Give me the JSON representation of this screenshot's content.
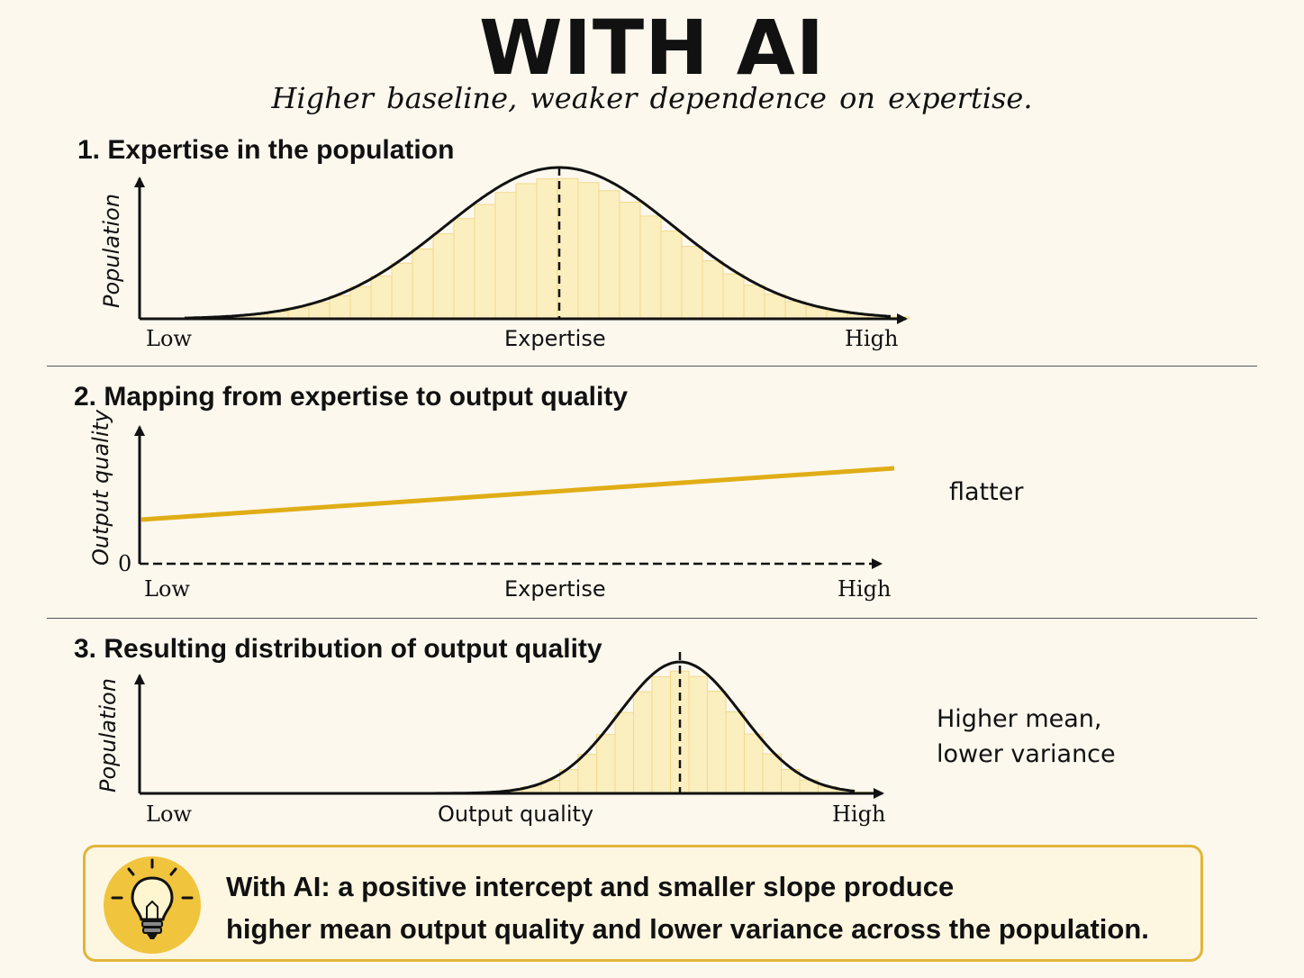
{
  "title": "WITH AI",
  "subtitle": "Higher baseline, weaker dependence on expertise.",
  "section1": {
    "title": "1. Expertise in the population",
    "ylabel": "Population",
    "xlabel": "Expertise",
    "x_low": "Low",
    "x_high": "High"
  },
  "section2": {
    "title": "2. Mapping from expertise to output quality",
    "ylabel": "Output quality",
    "xlabel": "Expertise",
    "x_low": "Low",
    "x_high": "High",
    "zero": "0",
    "note": "flatter"
  },
  "section3": {
    "title": "3. Resulting distribution of output quality",
    "ylabel": "Population",
    "xlabel": "Output quality",
    "x_low": "Low",
    "x_high": "High",
    "note_line1": "Higher mean,",
    "note_line2": "lower variance"
  },
  "callout": {
    "line1": "With AI: a  positive intercept and smaller slope produce",
    "line2": "higher mean output quality and lower variance across the population.",
    "icon": "lightbulb-icon"
  },
  "colors": {
    "background": "#fcf8ee",
    "bar_fill": "#fbefc0",
    "bar_stroke": "#f1d98a",
    "line": "#e0ad16",
    "callout_border": "#e2b53a",
    "icon_bg": "#f0c43c"
  }
}
